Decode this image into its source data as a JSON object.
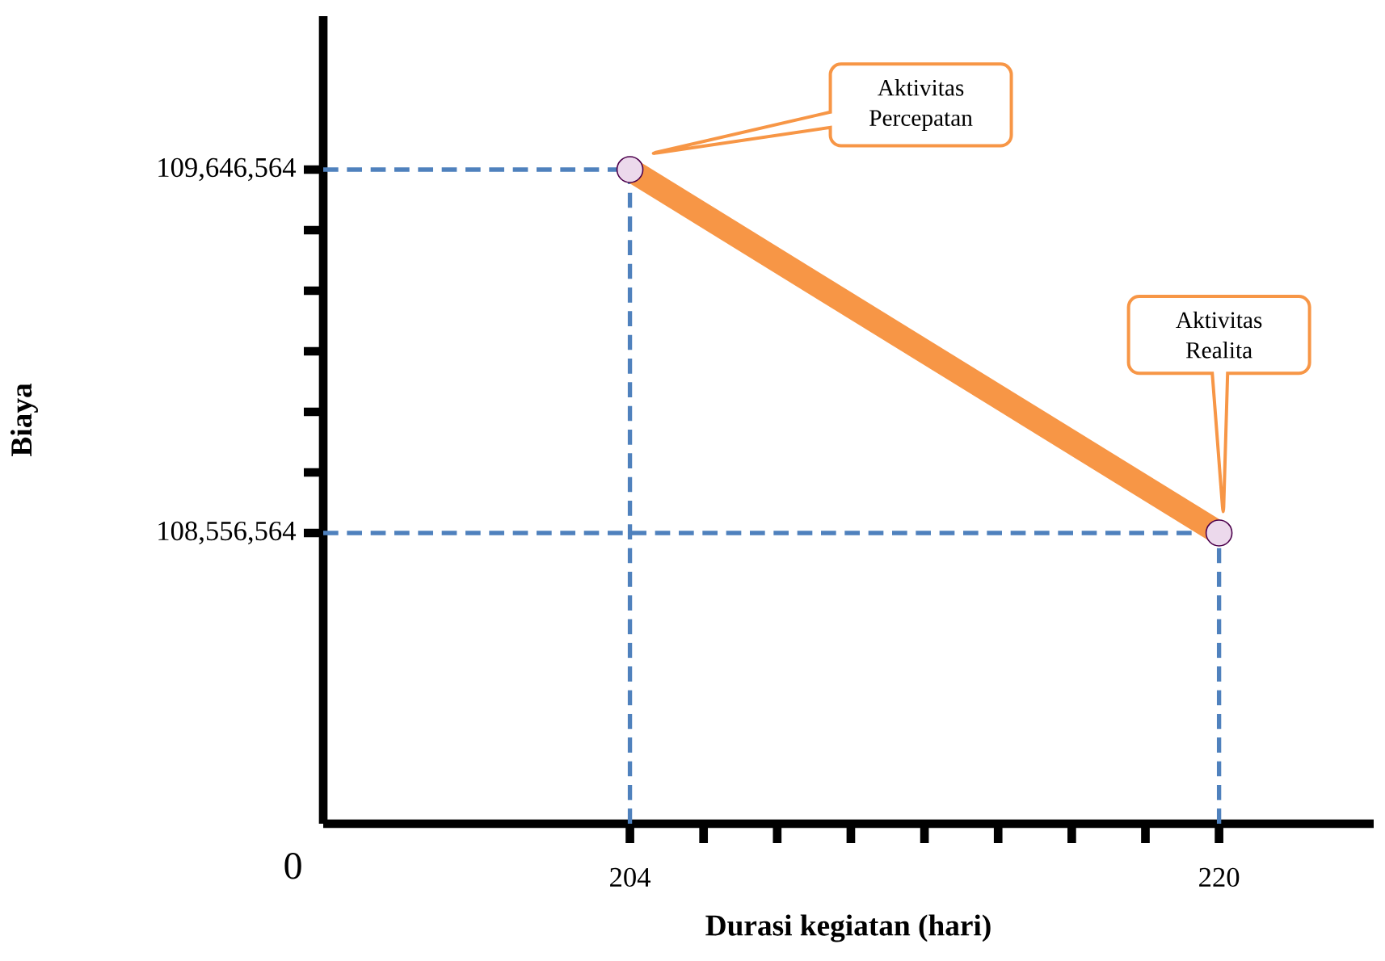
{
  "chart_data": {
    "type": "line",
    "xlabel": "Durasi kegiatan (hari)",
    "ylabel": "Biaya",
    "x": [
      204,
      220
    ],
    "series": [
      {
        "color": "#f79646",
        "values": [
          109646564,
          108556564
        ]
      }
    ],
    "marker": "circle",
    "xlim": [
      195.67,
      224.2
    ],
    "ylim": [
      107684644,
      110106744
    ],
    "xticks": [
      204,
      220
    ],
    "yticks": [
      {
        "value": 108556564,
        "label": "108,556,564"
      },
      {
        "value": 109646564,
        "label": "109,646,564"
      }
    ],
    "ref_lines": [
      {
        "axis": "x",
        "value": 204,
        "color": "#4f81bd",
        "line_style": "dashed"
      },
      {
        "axis": "x",
        "value": 220,
        "color": "#4f81bd",
        "line_style": "dashed"
      },
      {
        "axis": "y",
        "value": 109646564,
        "color": "#4f81bd",
        "line_style": "dashed"
      },
      {
        "axis": "y",
        "value": 108556564,
        "color": "#4f81bd",
        "line_style": "dashed"
      }
    ],
    "annotations": [
      "0",
      "Aktivitas Percepatan",
      "Aktivitas Realita"
    ]
  }
}
